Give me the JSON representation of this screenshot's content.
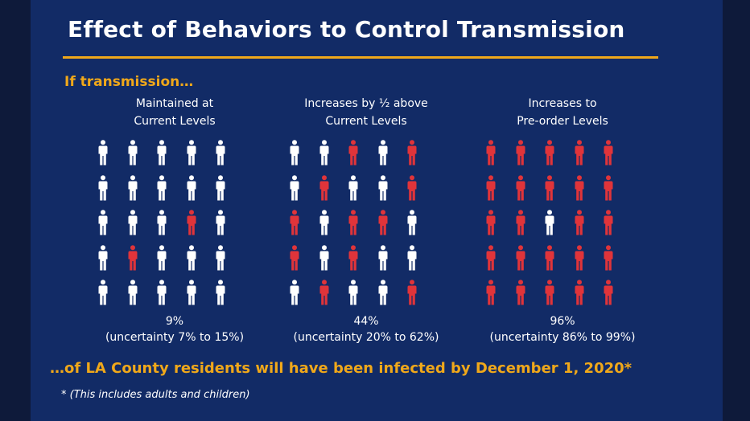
{
  "title": "Effect of Behaviors to Control Transmission",
  "subtitle": "If transmission…",
  "scenarios": [
    {
      "head_line1": "Maintained at",
      "head_line2": "Current Levels",
      "percent": "9%",
      "uncertainty": "(uncertainty 7% to 15%)",
      "grid": [
        [
          0,
          0,
          0,
          0,
          0
        ],
        [
          0,
          0,
          0,
          0,
          0
        ],
        [
          0,
          0,
          0,
          1,
          0
        ],
        [
          0,
          1,
          0,
          0,
          0
        ],
        [
          0,
          0,
          0,
          0,
          0
        ]
      ]
    },
    {
      "head_line1": "Increases by ½ above",
      "head_line2": "Current Levels",
      "percent": "44%",
      "uncertainty": "(uncertainty 20% to 62%)",
      "grid": [
        [
          0,
          0,
          1,
          0,
          1
        ],
        [
          0,
          1,
          0,
          0,
          1
        ],
        [
          1,
          0,
          1,
          1,
          0
        ],
        [
          1,
          0,
          1,
          0,
          0
        ],
        [
          0,
          1,
          0,
          0,
          1
        ]
      ]
    },
    {
      "head_line1": "Increases to",
      "head_line2": "Pre-order Levels",
      "percent": "96%",
      "uncertainty": "(uncertainty 86% to 99%)",
      "grid": [
        [
          1,
          1,
          1,
          1,
          1
        ],
        [
          1,
          1,
          1,
          1,
          1
        ],
        [
          1,
          1,
          0,
          1,
          1
        ],
        [
          1,
          1,
          1,
          1,
          1
        ],
        [
          1,
          1,
          1,
          1,
          1
        ]
      ]
    }
  ],
  "bottom_line": "…of LA County residents will have been infected by December 1, 2020*",
  "footnote": "* (This includes adults and children)",
  "colors": {
    "infected": "#e0343a",
    "not_infected": "#ffffff",
    "accent": "#f0a81a",
    "background": "#122b66"
  },
  "icons": {
    "person": "person-icon"
  }
}
